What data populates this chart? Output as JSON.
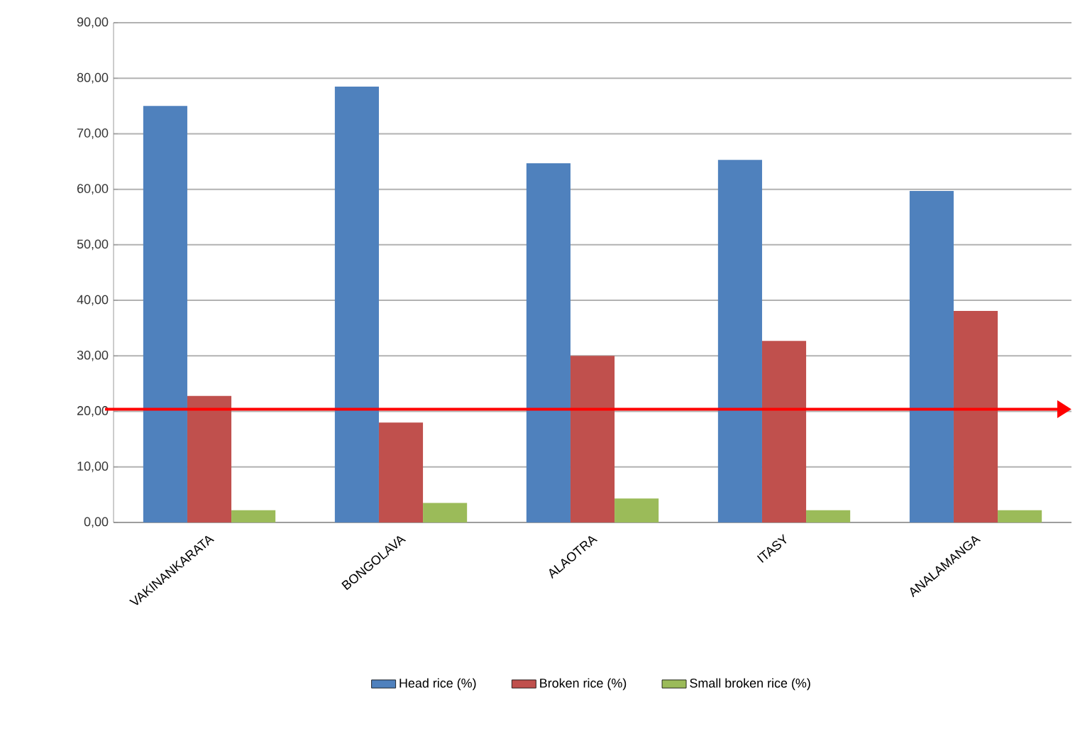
{
  "chart_data": {
    "type": "bar",
    "categories": [
      "VAKINANKARATA",
      "BONGOLAVA",
      "ALAOTRA",
      "ITASY",
      "ANALAMANGA"
    ],
    "series": [
      {
        "name": "Head rice (%)",
        "color": "#4f81bd",
        "values": [
          75.0,
          78.5,
          64.7,
          65.3,
          59.7
        ]
      },
      {
        "name": "Broken rice (%)",
        "color": "#c0504d",
        "values": [
          22.8,
          18.0,
          30.0,
          32.7,
          38.1
        ]
      },
      {
        "name": "Small broken rice (%)",
        "color": "#9bbb59",
        "values": [
          2.2,
          3.5,
          4.3,
          2.2,
          2.2
        ]
      }
    ],
    "ylim": [
      0,
      90
    ],
    "yticks": [
      {
        "value": 0,
        "label": "0,00"
      },
      {
        "value": 10,
        "label": "10,00"
      },
      {
        "value": 20,
        "label": "20,00"
      },
      {
        "value": 30,
        "label": "30,00"
      },
      {
        "value": 40,
        "label": "40,00"
      },
      {
        "value": 50,
        "label": "50,00"
      },
      {
        "value": 60,
        "label": "60,00"
      },
      {
        "value": 70,
        "label": "70,00"
      },
      {
        "value": 80,
        "label": "80,00"
      },
      {
        "value": 90,
        "label": "90,00"
      }
    ],
    "ref_lines": [
      {
        "axis": "y",
        "value": 20.4,
        "color": "#ff0000"
      }
    ],
    "grid": "y",
    "legend": "bottom"
  }
}
